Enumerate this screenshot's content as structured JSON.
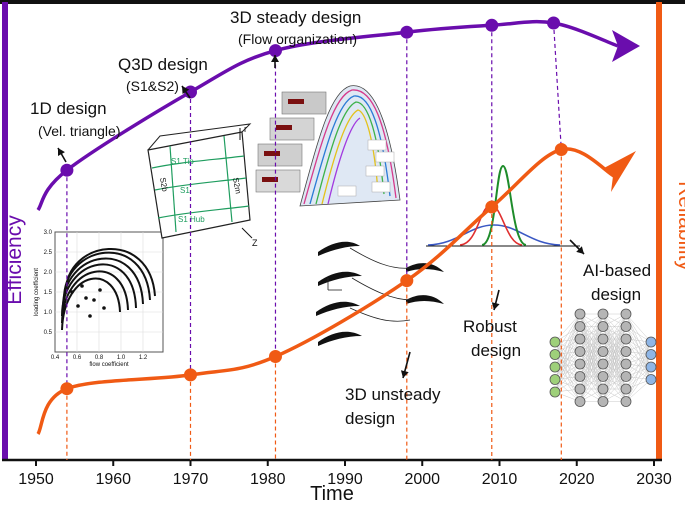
{
  "chart_data": {
    "type": "line",
    "xlabel": "Time",
    "ylabel_left": "Efficiency",
    "ylabel_right": "Reliability",
    "xlim": [
      1950,
      2030
    ],
    "xticks": [
      "1950",
      "1960",
      "1970",
      "1980",
      "1990",
      "2000",
      "2010",
      "2020",
      "2030"
    ],
    "colors": {
      "efficiency": "#6a0dad",
      "reliability": "#f05a14",
      "axis": "#111111"
    },
    "series": [
      {
        "key": "efficiency",
        "x": [
          1954,
          1970,
          1981,
          1998,
          2009,
          2017
        ],
        "y": [
          0.63,
          0.8,
          0.89,
          0.93,
          0.945,
          0.95
        ]
      },
      {
        "key": "reliability",
        "x": [
          1954,
          1970,
          1981,
          1998,
          2009,
          2018
        ],
        "y": [
          0.155,
          0.185,
          0.225,
          0.39,
          0.55,
          0.675
        ]
      }
    ],
    "annotations": [
      {
        "id": "ann-1d",
        "lines": [
          "1D design",
          "(Vel. triangle)"
        ]
      },
      {
        "id": "ann-q3d",
        "lines": [
          "Q3D design",
          "(S1&S2)"
        ]
      },
      {
        "id": "ann-3dsteady",
        "lines": [
          "3D steady design",
          "(Flow organization)"
        ]
      },
      {
        "id": "ann-3dunsteady",
        "lines": [
          "3D unsteady",
          "design"
        ]
      },
      {
        "id": "ann-robust",
        "lines": [
          "Robust",
          "design"
        ]
      },
      {
        "id": "ann-ai",
        "lines": [
          "AI-based",
          "design"
        ]
      }
    ],
    "inset_labels": {
      "loading_axis": "loading coefficient",
      "flow_axis": "flow coefficient",
      "loading_ticks": [
        "0.5",
        "1.0",
        "1.5",
        "2.0",
        "2.5",
        "3.0"
      ],
      "flow_ticks": [
        "0.4",
        "0.6",
        "0.8",
        "1.0",
        "1.2"
      ],
      "s1_tip": "S1 Tip",
      "s1": "S1",
      "s1_hub": "S1 Hub",
      "s2b": "S2b",
      "s2m": "S2m",
      "r_axis": "r",
      "z_axis": "Z"
    }
  }
}
